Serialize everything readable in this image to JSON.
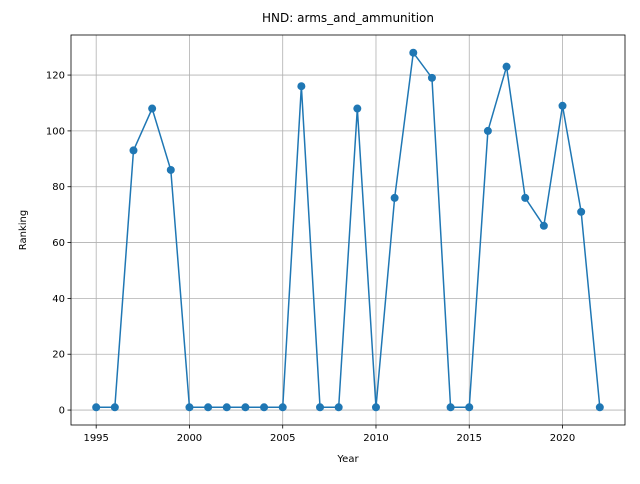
{
  "chart_data": {
    "type": "line",
    "title": "HND: arms_and_ammunition",
    "xlabel": "Year",
    "ylabel": "Ranking",
    "x": [
      1995,
      1996,
      1997,
      1998,
      1999,
      2000,
      2001,
      2002,
      2003,
      2004,
      2005,
      2006,
      2007,
      2008,
      2009,
      2010,
      2011,
      2012,
      2013,
      2014,
      2015,
      2016,
      2017,
      2018,
      2019,
      2020,
      2021,
      2022
    ],
    "values": [
      1,
      1,
      93,
      108,
      86,
      1,
      1,
      1,
      1,
      1,
      1,
      116,
      1,
      1,
      108,
      1,
      76,
      128,
      119,
      1,
      1,
      100,
      123,
      76,
      66,
      109,
      71,
      1
    ],
    "color": "#1f77b4",
    "xlim": [
      1993.65,
      2023.35
    ],
    "xticks": [
      1995,
      2000,
      2005,
      2010,
      2015,
      2020
    ],
    "ylim": [
      -5.35,
      134.35
    ],
    "yticks": [
      0,
      20,
      40,
      60,
      80,
      100,
      120
    ],
    "grid": true
  }
}
